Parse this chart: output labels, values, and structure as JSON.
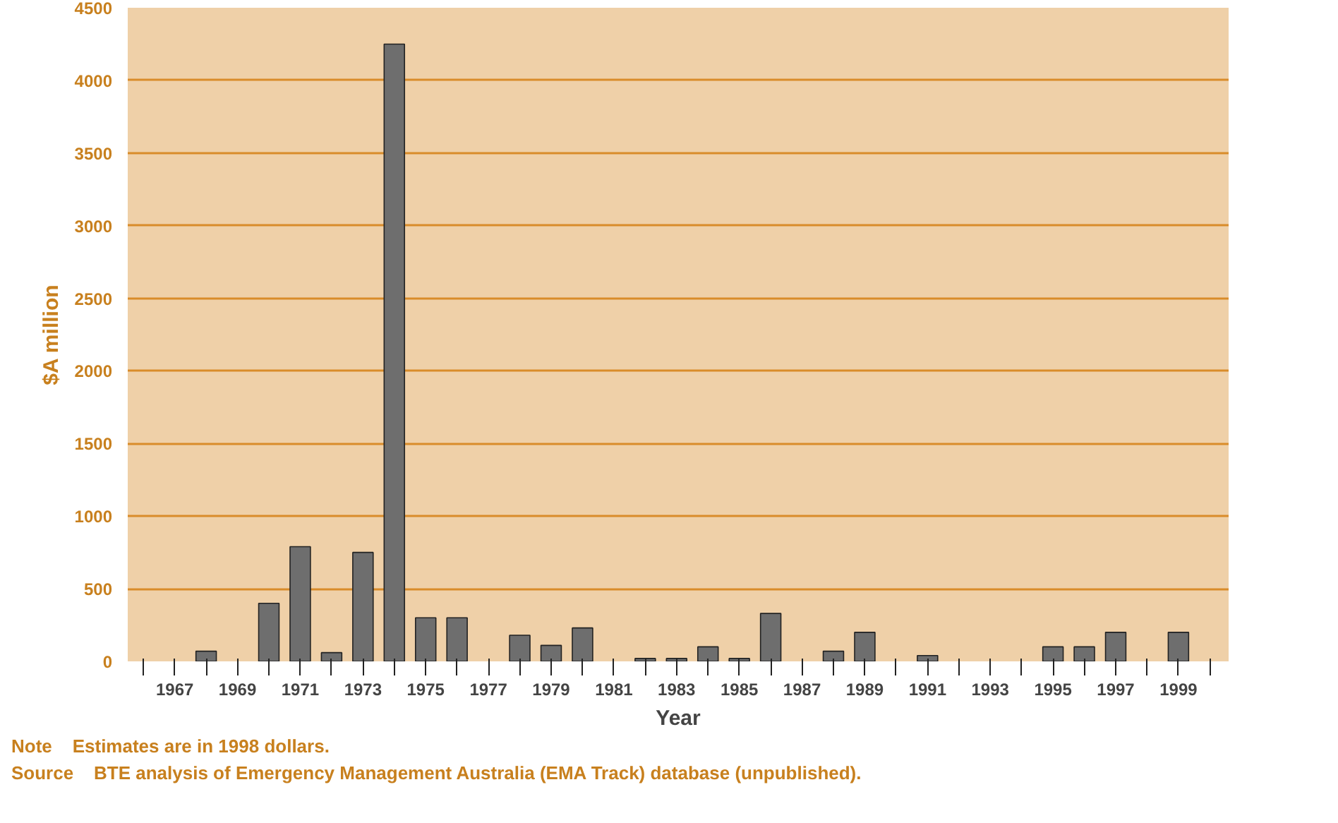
{
  "chart_data": {
    "type": "bar",
    "xlabel": "Year",
    "ylabel": "$A million",
    "x": [
      1968,
      1969,
      1970,
      1971,
      1972,
      1973,
      1974,
      1975,
      1976,
      1977,
      1978,
      1979,
      1980,
      1981,
      1982,
      1983,
      1984,
      1985,
      1986,
      1987,
      1988,
      1989,
      1990,
      1991,
      1992,
      1993,
      1994,
      1995,
      1996,
      1997,
      1998,
      1999
    ],
    "values": [
      70,
      null,
      400,
      790,
      60,
      750,
      4250,
      300,
      300,
      null,
      180,
      110,
      230,
      null,
      20,
      20,
      100,
      20,
      330,
      null,
      70,
      200,
      null,
      40,
      null,
      null,
      null,
      100,
      100,
      200,
      null,
      200
    ],
    "color": "#6e6e6e",
    "xlim": [
      1965.5,
      2000.6
    ],
    "xticks": [
      {
        "value": 1966,
        "label": null
      },
      1967,
      {
        "value": 1968,
        "label": null
      },
      1969,
      {
        "value": 1970,
        "label": null
      },
      1971,
      {
        "value": 1972,
        "label": null
      },
      1973,
      {
        "value": 1974,
        "label": null
      },
      1975,
      {
        "value": 1976,
        "label": null
      },
      1977,
      {
        "value": 1978,
        "label": null
      },
      1979,
      {
        "value": 1980,
        "label": null
      },
      1981,
      {
        "value": 1982,
        "label": null
      },
      1983,
      {
        "value": 1984,
        "label": null
      },
      1985,
      {
        "value": 1986,
        "label": null
      },
      1987,
      {
        "value": 1988,
        "label": null
      },
      1989,
      {
        "value": 1990,
        "label": null
      },
      1991,
      {
        "value": 1992,
        "label": null
      },
      1993,
      {
        "value": 1994,
        "label": null
      },
      1995,
      {
        "value": 1996,
        "label": null
      },
      1997,
      {
        "value": 1998,
        "label": null
      },
      1999,
      {
        "value": 2000,
        "label": null
      }
    ],
    "ylim": [
      0,
      4500
    ],
    "yticks": [
      0,
      500,
      1000,
      1500,
      2000,
      2500,
      3000,
      3500,
      4000,
      4500
    ],
    "grid": "y",
    "annotations": [
      "Note    Estimates are in 1998 dollars.",
      "Source    BTE analysis of Emergency Management Australia (EMA Track) database (unpublished)."
    ]
  }
}
